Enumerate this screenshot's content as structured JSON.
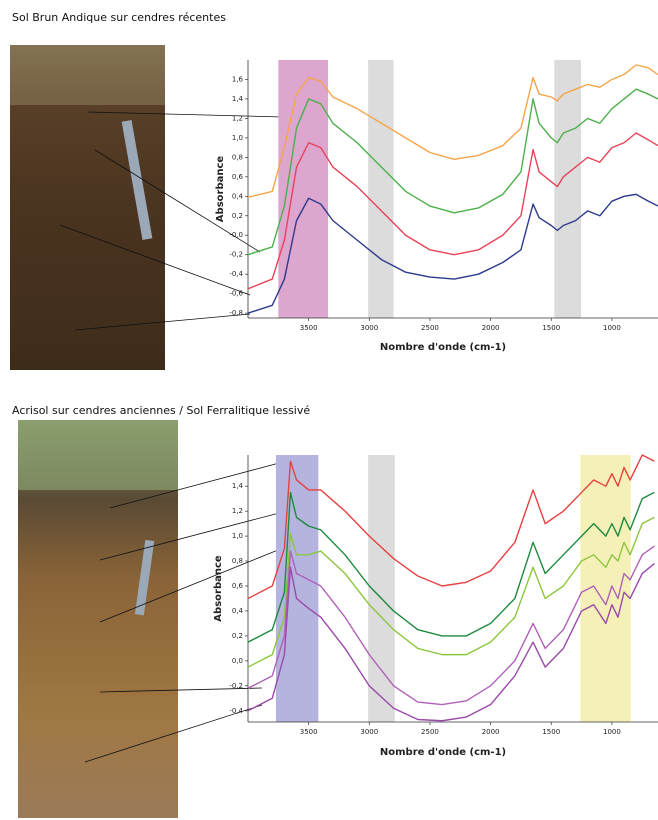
{
  "chart_data": [
    {
      "type": "line",
      "title": "Sol Brun Andique sur cendres récentes",
      "ylabel": "Absorbance",
      "xlabel": "Nombre d'onde (cm-1)",
      "xlim": [
        4000,
        620
      ],
      "ylim": [
        -0.85,
        1.8
      ],
      "xticks": [
        3500,
        3000,
        2500,
        2000,
        1500,
        1000
      ],
      "yticks": [
        {
          "value": 1.6,
          "label": "1,6"
        },
        {
          "value": 1.4,
          "label": "1,4"
        },
        {
          "value": 1.2,
          "label": "1,2"
        },
        {
          "value": 1.0,
          "label": "1,0"
        },
        {
          "value": 0.8,
          "label": "0,8"
        },
        {
          "value": 0.6,
          "label": "0,6"
        },
        {
          "value": 0.4,
          "label": "0,4"
        },
        {
          "value": 0.2,
          "label": "0,2"
        },
        {
          "value": 0.0,
          "label": "-0,0"
        },
        {
          "value": -0.2,
          "label": "-0,2"
        },
        {
          "value": -0.4,
          "label": "-0,4"
        },
        {
          "value": -0.6,
          "label": "-0,6"
        },
        {
          "value": -0.8,
          "label": "-0,8"
        }
      ],
      "highlights": [
        {
          "from": 3750,
          "to": 3340,
          "color": "#dca6cf"
        },
        {
          "from": 3010,
          "to": 2800,
          "color": "#dcdcdc"
        },
        {
          "from": 1475,
          "to": 1255,
          "color": "#dcdcdc"
        }
      ],
      "x": [
        4000,
        3800,
        3700,
        3600,
        3500,
        3400,
        3300,
        3100,
        2900,
        2700,
        2500,
        2300,
        2100,
        1900,
        1750,
        1650,
        1600,
        1500,
        1450,
        1400,
        1300,
        1200,
        1100,
        1000,
        900,
        800,
        700,
        620
      ],
      "series": [
        {
          "color": "#f5a54a",
          "values": [
            0.39,
            0.45,
            0.9,
            1.45,
            1.62,
            1.58,
            1.42,
            1.3,
            1.15,
            1.0,
            0.85,
            0.78,
            0.82,
            0.92,
            1.1,
            1.62,
            1.45,
            1.42,
            1.38,
            1.45,
            1.5,
            1.55,
            1.52,
            1.6,
            1.65,
            1.75,
            1.72,
            1.65
          ]
        },
        {
          "color": "#4cb04a",
          "values": [
            -0.2,
            -0.12,
            0.3,
            1.1,
            1.4,
            1.35,
            1.15,
            0.95,
            0.7,
            0.45,
            0.3,
            0.23,
            0.28,
            0.42,
            0.65,
            1.4,
            1.15,
            1.0,
            0.95,
            1.05,
            1.1,
            1.2,
            1.15,
            1.3,
            1.4,
            1.5,
            1.45,
            1.4
          ]
        },
        {
          "color": "#e8435a",
          "values": [
            -0.55,
            -0.45,
            -0.05,
            0.7,
            0.95,
            0.9,
            0.7,
            0.5,
            0.25,
            0.0,
            -0.15,
            -0.2,
            -0.15,
            0.0,
            0.2,
            0.88,
            0.65,
            0.55,
            0.5,
            0.6,
            0.7,
            0.8,
            0.75,
            0.9,
            0.95,
            1.05,
            0.98,
            0.92
          ]
        },
        {
          "color": "#2e3a8c",
          "values": [
            -0.8,
            -0.72,
            -0.45,
            0.15,
            0.38,
            0.32,
            0.15,
            -0.05,
            -0.25,
            -0.38,
            -0.43,
            -0.45,
            -0.4,
            -0.28,
            -0.15,
            0.32,
            0.18,
            0.1,
            0.05,
            0.1,
            0.15,
            0.25,
            0.2,
            0.35,
            0.4,
            0.42,
            0.35,
            0.3
          ]
        }
      ]
    },
    {
      "type": "line",
      "title": "Acrisol sur cendres anciennes / Sol Ferralitique lessivé",
      "ylabel": "Absorbance",
      "xlabel": "Nombre d'onde (cm-1)",
      "xlim": [
        4000,
        620
      ],
      "ylim": [
        -0.49,
        1.65
      ],
      "xticks": [
        3500,
        3000,
        2500,
        2000,
        1500,
        1000
      ],
      "yticks": [
        {
          "value": 1.4,
          "label": "1,4"
        },
        {
          "value": 1.2,
          "label": "1,2"
        },
        {
          "value": 1.0,
          "label": "1,0"
        },
        {
          "value": 0.8,
          "label": "0,8"
        },
        {
          "value": 0.6,
          "label": "0,6"
        },
        {
          "value": 0.4,
          "label": "0,4"
        },
        {
          "value": 0.2,
          "label": "0,2"
        },
        {
          "value": 0.0,
          "label": "0,0"
        },
        {
          "value": -0.2,
          "label": "-0,2"
        },
        {
          "value": -0.4,
          "label": "-0,4"
        }
      ],
      "highlights": [
        {
          "from": 3770,
          "to": 3420,
          "color": "#b4b4de"
        },
        {
          "from": 3010,
          "to": 2790,
          "color": "#dcdcdc"
        },
        {
          "from": 1260,
          "to": 845,
          "color": "#f5f0b8"
        }
      ],
      "x": [
        4000,
        3800,
        3700,
        3650,
        3600,
        3500,
        3400,
        3200,
        3000,
        2800,
        2600,
        2400,
        2200,
        2000,
        1800,
        1650,
        1550,
        1400,
        1250,
        1150,
        1050,
        1000,
        950,
        900,
        850,
        750,
        650
      ],
      "series": [
        {
          "color": "#e84040",
          "values": [
            0.5,
            0.6,
            0.9,
            1.6,
            1.45,
            1.37,
            1.37,
            1.2,
            1.0,
            0.82,
            0.68,
            0.6,
            0.63,
            0.72,
            0.95,
            1.37,
            1.1,
            1.2,
            1.35,
            1.45,
            1.4,
            1.5,
            1.4,
            1.55,
            1.45,
            1.65,
            1.6
          ]
        },
        {
          "color": "#1e8a3e",
          "values": [
            0.15,
            0.25,
            0.55,
            1.35,
            1.15,
            1.08,
            1.05,
            0.85,
            0.6,
            0.4,
            0.25,
            0.2,
            0.2,
            0.3,
            0.5,
            0.95,
            0.7,
            0.85,
            1.0,
            1.1,
            1.0,
            1.1,
            1.0,
            1.15,
            1.05,
            1.3,
            1.35
          ]
        },
        {
          "color": "#8cc63e",
          "values": [
            -0.05,
            0.05,
            0.35,
            1.02,
            0.85,
            0.85,
            0.88,
            0.7,
            0.45,
            0.25,
            0.1,
            0.05,
            0.05,
            0.15,
            0.35,
            0.75,
            0.5,
            0.6,
            0.8,
            0.85,
            0.75,
            0.85,
            0.8,
            0.95,
            0.85,
            1.1,
            1.15
          ]
        },
        {
          "color": "#b060b8",
          "values": [
            -0.22,
            -0.12,
            0.2,
            0.88,
            0.7,
            0.65,
            0.6,
            0.35,
            0.05,
            -0.2,
            -0.33,
            -0.35,
            -0.32,
            -0.2,
            0.0,
            0.3,
            0.1,
            0.25,
            0.55,
            0.6,
            0.45,
            0.6,
            0.5,
            0.7,
            0.65,
            0.85,
            0.92
          ]
        },
        {
          "color": "#9a4aa8",
          "values": [
            -0.4,
            -0.3,
            0.05,
            0.75,
            0.5,
            0.42,
            0.35,
            0.1,
            -0.2,
            -0.38,
            -0.47,
            -0.48,
            -0.45,
            -0.35,
            -0.12,
            0.15,
            -0.05,
            0.1,
            0.4,
            0.45,
            0.3,
            0.45,
            0.35,
            0.55,
            0.5,
            0.7,
            0.78
          ]
        }
      ]
    }
  ]
}
